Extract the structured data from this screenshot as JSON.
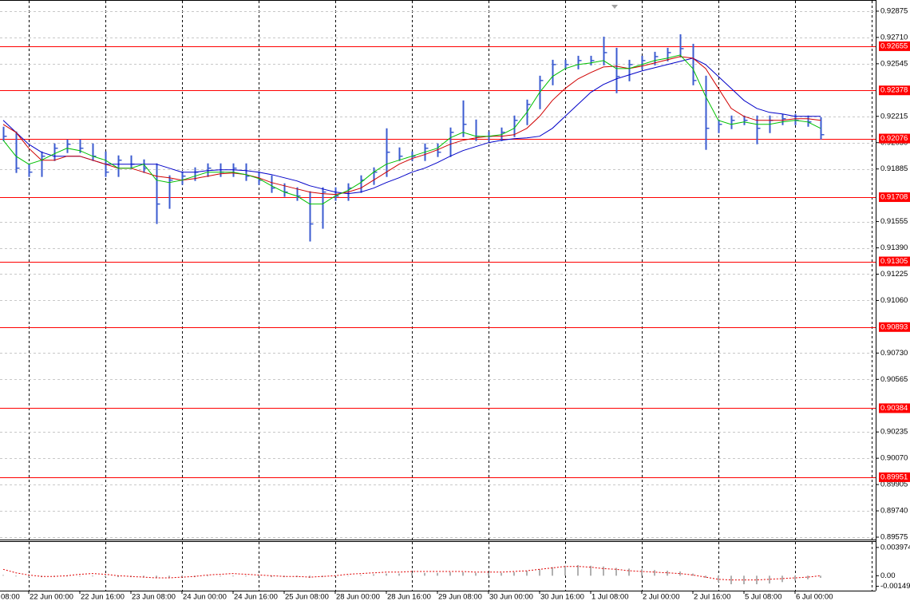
{
  "chart_data": [
    {
      "type": "ohlc",
      "xlim": [
        -0.25,
        68.3125
      ],
      "ylim": [
        0.8956,
        0.9294
      ],
      "yticks": [
        0.92875,
        {
          "value": 0.9271,
          "label": "0.92710"
        },
        0.92545,
        0.92215,
        {
          "value": 0.9205,
          "label": "0.92050"
        },
        0.91885,
        0.91555,
        {
          "value": 0.9139,
          "label": "0.91390"
        },
        0.91225,
        {
          "value": 0.9106,
          "label": "0.91060"
        },
        {
          "value": 0.9073,
          "label": "0.90730"
        },
        0.90565,
        0.90235,
        {
          "value": 0.9007,
          "label": "0.90070"
        },
        0.89905,
        {
          "value": 0.8974,
          "label": "0.89740"
        },
        0.89575
      ],
      "xgrid": [
        2,
        8,
        14,
        20,
        26,
        32,
        38,
        44,
        50,
        56,
        62,
        68
      ],
      "grid": true,
      "color": "#3b5bd0",
      "high": [
        0.9215,
        0.9212,
        0.9192,
        0.91995,
        0.92045,
        0.9207,
        0.9207,
        0.92045,
        0.91995,
        0.9197,
        0.9197,
        0.91945,
        0.9192,
        0.91845,
        0.9187,
        0.91895,
        0.9192,
        0.9192,
        0.9192,
        0.9192,
        0.9187,
        0.91845,
        0.91795,
        0.9177,
        0.91745,
        0.9177,
        0.9177,
        0.91795,
        0.91845,
        0.91895,
        0.9214,
        0.9202,
        0.91995,
        0.92045,
        0.92045,
        0.92145,
        0.92315,
        0.92195,
        0.9212,
        0.92145,
        0.9222,
        0.9232,
        0.9247,
        0.9257,
        0.9257,
        0.92595,
        0.92595,
        0.92715,
        0.92645,
        0.9257,
        0.92595,
        0.9262,
        0.92645,
        0.9273,
        0.9267,
        0.9247,
        0.92195,
        0.9222,
        0.9222,
        0.9222,
        0.9222,
        0.9223,
        0.9223,
        0.9222,
        0.9221
      ],
      "low": [
        0.9206,
        0.9186,
        0.91835,
        0.91835,
        0.91935,
        0.91985,
        0.91985,
        0.91935,
        0.91835,
        0.91835,
        0.91885,
        0.9186,
        0.9154,
        0.91635,
        0.91785,
        0.9181,
        0.91835,
        0.91835,
        0.91835,
        0.9181,
        0.91785,
        0.91735,
        0.9171,
        0.91685,
        0.9143,
        0.9151,
        0.91685,
        0.91685,
        0.91735,
        0.91785,
        0.91835,
        0.91935,
        0.91935,
        0.91935,
        0.9196,
        0.9196,
        0.92085,
        0.9206,
        0.9206,
        0.9206,
        0.92085,
        0.9216,
        0.9226,
        0.9241,
        0.9251,
        0.9251,
        0.92535,
        0.92535,
        0.9236,
        0.92435,
        0.9251,
        0.92535,
        0.9256,
        0.92585,
        0.9241,
        0.92005,
        0.9211,
        0.92135,
        0.9216,
        0.9204,
        0.9211,
        0.9216,
        0.9216,
        0.9215,
        0.9207
      ],
      "close": [
        0.9209,
        0.9189,
        0.91865,
        0.91965,
        0.92015,
        0.9204,
        0.92015,
        0.91965,
        0.91865,
        0.9194,
        0.91915,
        0.9189,
        0.91665,
        0.91815,
        0.9184,
        0.91865,
        0.9189,
        0.91865,
        0.9189,
        0.9184,
        0.91815,
        0.91765,
        0.9174,
        0.91715,
        0.9154,
        0.9174,
        0.91715,
        0.91765,
        0.91815,
        0.91865,
        0.9199,
        0.91965,
        0.91965,
        0.92015,
        0.9199,
        0.92115,
        0.92165,
        0.9209,
        0.9209,
        0.92115,
        0.9219,
        0.9229,
        0.9244,
        0.9254,
        0.9254,
        0.92565,
        0.92565,
        0.92615,
        0.92465,
        0.9254,
        0.92565,
        0.9259,
        0.92615,
        0.9264,
        0.9244,
        0.9214,
        0.92165,
        0.9219,
        0.9219,
        0.9214,
        0.9219,
        0.922,
        0.9219,
        0.9218,
        0.921
      ],
      "series": [
        {
          "color": "#0000c8",
          "values": [
            0.9219,
            0.92115,
            0.9204,
            0.9199,
            0.91965,
            0.91965,
            0.91965,
            0.9194,
            0.91915,
            0.91915,
            0.91915,
            0.91915,
            0.91915,
            0.9189,
            0.91865,
            0.91865,
            0.91875,
            0.9188,
            0.9188,
            0.91875,
            0.91865,
            0.9185,
            0.9183,
            0.9181,
            0.9178,
            0.9176,
            0.9174,
            0.9173,
            0.9174,
            0.91765,
            0.918,
            0.9183,
            0.91865,
            0.9189,
            0.91925,
            0.91965,
            0.92,
            0.92025,
            0.9205,
            0.92065,
            0.92075,
            0.9208,
            0.9209,
            0.9214,
            0.92215,
            0.9229,
            0.92365,
            0.92415,
            0.9245,
            0.92475,
            0.925,
            0.9252,
            0.9254,
            0.9256,
            0.9258,
            0.9254,
            0.92465,
            0.9239,
            0.92315,
            0.92265,
            0.9224,
            0.9223,
            0.92215,
            0.92215,
            0.92215
          ]
        },
        {
          "color": "#d00000",
          "values": [
            0.92165,
            0.92115,
            0.92015,
            0.9194,
            0.9194,
            0.91965,
            0.91965,
            0.9194,
            0.91915,
            0.9189,
            0.9189,
            0.91865,
            0.9184,
            0.9183,
            0.91815,
            0.91825,
            0.9184,
            0.91855,
            0.9186,
            0.9185,
            0.9183,
            0.918,
            0.9178,
            0.9176,
            0.9174,
            0.9173,
            0.91725,
            0.9174,
            0.91765,
            0.91815,
            0.91865,
            0.91915,
            0.9195,
            0.91975,
            0.92005,
            0.9204,
            0.92065,
            0.9208,
            0.9209,
            0.9209,
            0.921,
            0.9214,
            0.92215,
            0.92315,
            0.9239,
            0.9245,
            0.9249,
            0.92525,
            0.9253,
            0.92515,
            0.9253,
            0.9255,
            0.9257,
            0.9259,
            0.9258,
            0.92515,
            0.9239,
            0.92265,
            0.92215,
            0.9219,
            0.9219,
            0.9219,
            0.922,
            0.922,
            0.9219
          ]
        },
        {
          "color": "#00c000",
          "values": [
            0.92065,
            0.91965,
            0.91915,
            0.9194,
            0.9198,
            0.92015,
            0.92,
            0.91965,
            0.9194,
            0.9189,
            0.9189,
            0.91915,
            0.91815,
            0.918,
            0.91815,
            0.9184,
            0.91865,
            0.91865,
            0.91865,
            0.9185,
            0.91825,
            0.9178,
            0.9174,
            0.91715,
            0.91665,
            0.91665,
            0.91715,
            0.9175,
            0.918,
            0.91865,
            0.91915,
            0.9194,
            0.91965,
            0.9199,
            0.92015,
            0.9208,
            0.92115,
            0.9209,
            0.9209,
            0.921,
            0.9214,
            0.9224,
            0.92365,
            0.92465,
            0.92515,
            0.9254,
            0.9255,
            0.92565,
            0.92515,
            0.92515,
            0.9254,
            0.92565,
            0.9258,
            0.926,
            0.92515,
            0.9234,
            0.9219,
            0.92165,
            0.9218,
            0.92165,
            0.92165,
            0.9218,
            0.9219,
            0.9218,
            0.9214
          ]
        }
      ],
      "levels": [
        0.92655,
        0.92378,
        0.92076,
        0.91708,
        0.91305,
        0.90893,
        0.90384,
        0.89951
      ],
      "level_color": "#ff0000"
    },
    {
      "type": "macd",
      "xlim": [
        -0.25,
        68.3125
      ],
      "ylim": [
        -0.0021,
        0.00475
      ],
      "yticks": [
        0.003974,
        {
          "value": 0,
          "label": "0.00"
        },
        -0.00149
      ],
      "xgrid": [
        2,
        8,
        14,
        20,
        26,
        32,
        38,
        44,
        50,
        56,
        62,
        68
      ],
      "xticks": [
        {
          "value": -2,
          "label": "08:00"
        },
        {
          "value": 2,
          "label": "22 Jun 00:00"
        },
        {
          "value": 6,
          "label": "22 Jun 16:00"
        },
        {
          "value": 10,
          "label": "23 Jun 08:00"
        },
        {
          "value": 14,
          "label": "24 Jun 00:00"
        },
        {
          "value": 18,
          "label": "24 Jun 16:00"
        },
        {
          "value": 22,
          "label": "25 Jun 08:00"
        },
        {
          "value": 26,
          "label": "28 Jun 00:00"
        },
        {
          "value": 30,
          "label": "28 Jun 16:00"
        },
        {
          "value": 34,
          "label": "29 Jun 08:00"
        },
        {
          "value": 38,
          "label": "30 Jun 00:00"
        },
        {
          "value": 42,
          "label": "30 Jun 16:00"
        },
        {
          "value": 46,
          "label": "1 Jul 08:00"
        },
        {
          "value": 50,
          "label": "2 Jul 00:00"
        },
        {
          "value": 54,
          "label": "2 Jul 16:00"
        },
        {
          "value": 58,
          "label": "5 Jul 08:00"
        },
        {
          "value": 62,
          "label": "6 Jul 00:00"
        }
      ],
      "series": [
        {
          "kind": "histogram",
          "color": "#b0b0b0",
          "values": [
            0.0001,
            -0.0001,
            -0.0002,
            -0.0002,
            -0.0001,
            -0.0001,
            -0.0001,
            -0.0001,
            -0.0002,
            -0.0002,
            -0.0002,
            -0.0002,
            -0.0003,
            -0.0003,
            -0.0002,
            -0.0002,
            -0.0001,
            -0.0001,
            -0.0001,
            -0.0001,
            -0.0001,
            -0.0002,
            -0.0002,
            -0.0002,
            -0.0003,
            -0.0002,
            -0.0001,
            0,
            0.0001,
            0.0002,
            0.0003,
            0.0003,
            0.0004,
            0.0004,
            0.0004,
            0.0005,
            0.0005,
            0.0004,
            0.0004,
            0.0004,
            0.0005,
            0.0007,
            0.0009,
            0.0012,
            0.0014,
            0.0015,
            0.0014,
            0.0013,
            0.0011,
            0.001,
            0.0009,
            0.0008,
            0.0007,
            0.0006,
            0.0003,
            -0.0003,
            -0.0009,
            -0.0012,
            -0.0012,
            -0.0012,
            -0.0011,
            -0.0009,
            -0.0007,
            -0.0005,
            -0.0003
          ]
        },
        {
          "kind": "line",
          "color": "#e00000",
          "values": [
            0.0009,
            0.0004,
            0.0001,
            -0.0001,
            -0.0001,
            0,
            0.0002,
            0.0003,
            0.0002,
            0,
            -0.0001,
            -0.0002,
            -0.0003,
            -0.0003,
            -0.0002,
            -0.0001,
            0.0001,
            0.0002,
            0.0003,
            0.0002,
            0.0001,
            0,
            -0.0001,
            -0.0001,
            -0.0002,
            -0.0001,
            0,
            0.0002,
            0.0003,
            0.0004,
            0.0005,
            0.0005,
            0.0006,
            0.0006,
            0.0006,
            0.0006,
            0.0006,
            0.0005,
            0.0005,
            0.0005,
            0.0006,
            0.0007,
            0.0009,
            0.0011,
            0.0013,
            0.0013,
            0.0012,
            0.001,
            0.0009,
            0.0007,
            0.0006,
            0.0005,
            0.0004,
            0.0003,
            0.0001,
            -0.0002,
            -0.0005,
            -0.0006,
            -0.0006,
            -0.0006,
            -0.0005,
            -0.0004,
            -0.0003,
            -0.0002,
            0
          ]
        }
      ]
    }
  ]
}
